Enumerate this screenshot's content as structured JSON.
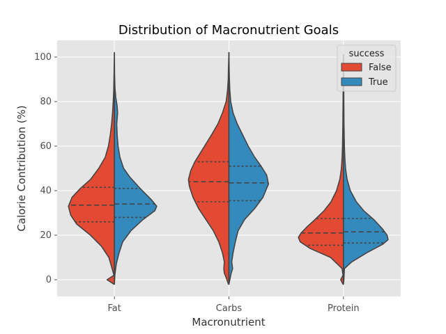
{
  "chart_data": {
    "type": "violin",
    "title": "Distribution of Macronutrient Goals",
    "xlabel": "Macronutrient",
    "ylabel": "Calorie Contribution (%)",
    "categories": [
      "Fat",
      "Carbs",
      "Protein"
    ],
    "ylim": [
      -7.5,
      107.5
    ],
    "yticks": [
      0,
      20,
      40,
      60,
      80,
      100
    ],
    "grid": true,
    "split": true,
    "legend": {
      "title": "success",
      "placement": "top-right",
      "entries": [
        {
          "label": "False",
          "color": "#e24a33"
        },
        {
          "label": "True",
          "color": "#348abd"
        }
      ]
    },
    "series": [
      {
        "name": "False",
        "color": "#e24a33",
        "groups": [
          {
            "category": "Fat",
            "range": [
              -2,
              102
            ],
            "quartiles": {
              "q1": 26,
              "median": 33.5,
              "q3": 41.5
            },
            "density": [
              [
                -2,
                0.01
              ],
              [
                0,
                0.16
              ],
              [
                2,
                0.01
              ],
              [
                5,
                0.05
              ],
              [
                10,
                0.12
              ],
              [
                15,
                0.28
              ],
              [
                20,
                0.52
              ],
              [
                25,
                0.82
              ],
              [
                29,
                0.95
              ],
              [
                33,
                1.0
              ],
              [
                37,
                0.92
              ],
              [
                41,
                0.74
              ],
              [
                45,
                0.52
              ],
              [
                50,
                0.34
              ],
              [
                55,
                0.2
              ],
              [
                60,
                0.13
              ],
              [
                65,
                0.09
              ],
              [
                70,
                0.06
              ],
              [
                75,
                0.04
              ],
              [
                80,
                0.025
              ],
              [
                85,
                0.015
              ],
              [
                90,
                0.01
              ],
              [
                95,
                0.005
              ],
              [
                102,
                0.0
              ]
            ]
          },
          {
            "category": "Carbs",
            "range": [
              -2,
              102
            ],
            "quartiles": {
              "q1": 35,
              "median": 44,
              "q3": 53
            },
            "density": [
              [
                -2,
                0.01
              ],
              [
                1,
                0.06
              ],
              [
                3,
                0.1
              ],
              [
                5,
                0.11
              ],
              [
                8,
                0.1
              ],
              [
                12,
                0.14
              ],
              [
                17,
                0.22
              ],
              [
                22,
                0.34
              ],
              [
                27,
                0.5
              ],
              [
                32,
                0.66
              ],
              [
                37,
                0.78
              ],
              [
                42,
                0.86
              ],
              [
                45,
                0.88
              ],
              [
                49,
                0.83
              ],
              [
                53,
                0.74
              ],
              [
                57,
                0.62
              ],
              [
                61,
                0.5
              ],
              [
                65,
                0.38
              ],
              [
                70,
                0.24
              ],
              [
                75,
                0.14
              ],
              [
                80,
                0.06
              ],
              [
                85,
                0.03
              ],
              [
                90,
                0.015
              ],
              [
                95,
                0.01
              ],
              [
                102,
                0.0
              ]
            ]
          },
          {
            "category": "Protein",
            "range": [
              -2,
              100
            ],
            "quartiles": {
              "q1": 15.5,
              "median": 21,
              "q3": 27.5
            },
            "density": [
              [
                -2,
                0.01
              ],
              [
                0,
                0.06
              ],
              [
                2,
                0.01
              ],
              [
                5,
                0.03
              ],
              [
                10,
                0.28
              ],
              [
                14,
                0.72
              ],
              [
                17,
                0.94
              ],
              [
                19,
                0.98
              ],
              [
                21,
                0.92
              ],
              [
                24,
                0.78
              ],
              [
                27,
                0.62
              ],
              [
                31,
                0.42
              ],
              [
                35,
                0.27
              ],
              [
                40,
                0.15
              ],
              [
                45,
                0.08
              ],
              [
                50,
                0.045
              ],
              [
                55,
                0.03
              ],
              [
                60,
                0.02
              ],
              [
                70,
                0.012
              ],
              [
                80,
                0.008
              ],
              [
                90,
                0.005
              ],
              [
                100,
                0.0
              ]
            ]
          }
        ]
      },
      {
        "name": "True",
        "color": "#348abd",
        "groups": [
          {
            "category": "Fat",
            "range": [
              -2,
              102
            ],
            "quartiles": {
              "q1": 28,
              "median": 34,
              "q3": 41
            },
            "density": [
              [
                -2,
                0.0
              ],
              [
                2,
                0.01
              ],
              [
                7,
                0.04
              ],
              [
                12,
                0.1
              ],
              [
                17,
                0.18
              ],
              [
                22,
                0.36
              ],
              [
                27,
                0.62
              ],
              [
                31,
                0.88
              ],
              [
                33,
                0.92
              ],
              [
                36,
                0.8
              ],
              [
                41,
                0.56
              ],
              [
                46,
                0.34
              ],
              [
                50,
                0.2
              ],
              [
                55,
                0.12
              ],
              [
                60,
                0.08
              ],
              [
                65,
                0.06
              ],
              [
                70,
                0.05
              ],
              [
                75,
                0.07
              ],
              [
                78,
                0.06
              ],
              [
                82,
                0.03
              ],
              [
                86,
                0.012
              ],
              [
                92,
                0.004
              ],
              [
                102,
                0.0
              ]
            ]
          },
          {
            "category": "Carbs",
            "range": [
              -2,
              102
            ],
            "quartiles": {
              "q1": 35.5,
              "median": 43.5,
              "q3": 51
            },
            "density": [
              [
                -2,
                0.0
              ],
              [
                0,
                0.02
              ],
              [
                3,
                0.05
              ],
              [
                5,
                0.08
              ],
              [
                8,
                0.06
              ],
              [
                12,
                0.09
              ],
              [
                17,
                0.14
              ],
              [
                22,
                0.2
              ],
              [
                27,
                0.34
              ],
              [
                32,
                0.56
              ],
              [
                37,
                0.74
              ],
              [
                41,
                0.82
              ],
              [
                43,
                0.86
              ],
              [
                47,
                0.82
              ],
              [
                51,
                0.7
              ],
              [
                55,
                0.56
              ],
              [
                60,
                0.42
              ],
              [
                65,
                0.3
              ],
              [
                70,
                0.18
              ],
              [
                75,
                0.09
              ],
              [
                80,
                0.04
              ],
              [
                85,
                0.02
              ],
              [
                90,
                0.01
              ],
              [
                95,
                0.005
              ],
              [
                102,
                0.0
              ]
            ]
          },
          {
            "category": "Protein",
            "range": [
              -2,
              101
            ],
            "quartiles": {
              "q1": 16.5,
              "median": 21.5,
              "q3": 27.5
            },
            "density": [
              [
                -2,
                0.0
              ],
              [
                0,
                0.01
              ],
              [
                5,
                0.02
              ],
              [
                8,
                0.18
              ],
              [
                12,
                0.5
              ],
              [
                16,
                0.86
              ],
              [
                18,
                0.97
              ],
              [
                20,
                0.95
              ],
              [
                23,
                0.84
              ],
              [
                27,
                0.66
              ],
              [
                31,
                0.44
              ],
              [
                35,
                0.28
              ],
              [
                40,
                0.15
              ],
              [
                45,
                0.08
              ],
              [
                50,
                0.045
              ],
              [
                55,
                0.03
              ],
              [
                60,
                0.02
              ],
              [
                70,
                0.012
              ],
              [
                80,
                0.008
              ],
              [
                90,
                0.005
              ],
              [
                101,
                0.0
              ]
            ]
          }
        ]
      }
    ]
  },
  "style": {
    "plot_background": "#e5e5e5",
    "grid_color": "#ffffff",
    "outline_color": "#444444",
    "page_background": "#ffffff"
  }
}
